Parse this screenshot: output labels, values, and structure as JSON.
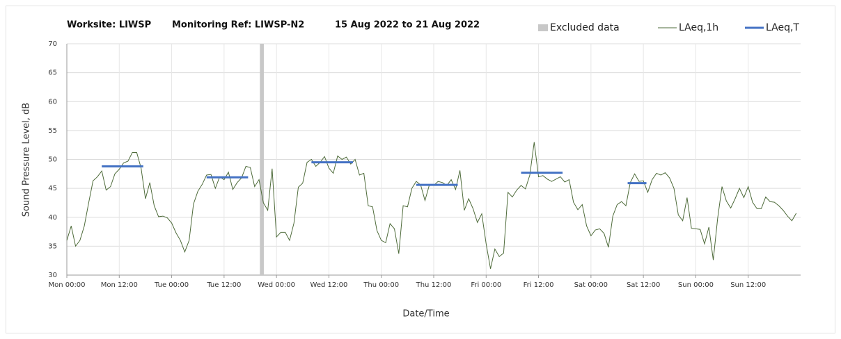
{
  "chart_data": {
    "type": "line",
    "title_parts": [
      "Worksite: LIWSP",
      "Monitoring Ref: LIWSP-N2",
      "15 Aug 2022 to 21 Aug 2022"
    ],
    "x_label": "Date/Time",
    "y_label": "Sound Pressure Level, dB",
    "xlim": [
      0,
      168
    ],
    "ylim": [
      30,
      70
    ],
    "yticks": [
      30,
      35,
      40,
      45,
      50,
      55,
      60,
      65,
      70
    ],
    "xticks": [
      {
        "value": 0,
        "label": "Mon 00:00"
      },
      {
        "value": 12,
        "label": "Mon 12:00"
      },
      {
        "value": 24,
        "label": "Tue 00:00"
      },
      {
        "value": 36,
        "label": "Tue 12:00"
      },
      {
        "value": 48,
        "label": "Wed 00:00"
      },
      {
        "value": 60,
        "label": "Wed 12:00"
      },
      {
        "value": 72,
        "label": "Thu 00:00"
      },
      {
        "value": 84,
        "label": "Thu 12:00"
      },
      {
        "value": 96,
        "label": "Fri 00:00"
      },
      {
        "value": 108,
        "label": "Fri 12:00"
      },
      {
        "value": 120,
        "label": "Sat 00:00"
      },
      {
        "value": 132,
        "label": "Sat 12:00"
      },
      {
        "value": 144,
        "label": "Sun 00:00"
      },
      {
        "value": 156,
        "label": "Sun 12:00"
      }
    ],
    "grid": true,
    "legend": "top-right",
    "excluded": {
      "name": "Excluded data",
      "color": "#c8c8c8",
      "x": [
        44.2,
        45.1
      ]
    },
    "series": [
      {
        "name": "LAeq,1h",
        "color": "#4e6b3a",
        "x": [
          0,
          1,
          2,
          3,
          4,
          5,
          6,
          7,
          8,
          9,
          10,
          11,
          12,
          13,
          14,
          15,
          16,
          17,
          18,
          19,
          20,
          21,
          22,
          23,
          24,
          25,
          26,
          27,
          28,
          29,
          30,
          31,
          32,
          33,
          34,
          35,
          36,
          37,
          38,
          39,
          40,
          41,
          42,
          43,
          44,
          45,
          46,
          47,
          48,
          49,
          50,
          51,
          52,
          53,
          54,
          55,
          56,
          57,
          58,
          59,
          60,
          61,
          62,
          63,
          64,
          65,
          66,
          67,
          68,
          69,
          70,
          71,
          72,
          73,
          74,
          75,
          76,
          77,
          78,
          79,
          80,
          81,
          82,
          83,
          84,
          85,
          86,
          87,
          88,
          89,
          90,
          91,
          92,
          93,
          94,
          95,
          96,
          97,
          98,
          99,
          100,
          101,
          102,
          103,
          104,
          105,
          106,
          107,
          108,
          109,
          110,
          111,
          112,
          113,
          114,
          115,
          116,
          117,
          118,
          119,
          120,
          121,
          122,
          123,
          124,
          125,
          126,
          127,
          128,
          129,
          130,
          131,
          132,
          133,
          134,
          135,
          136,
          137,
          138,
          139,
          140,
          141,
          142,
          143,
          144,
          145,
          146,
          147,
          148,
          149,
          150,
          151,
          152,
          153,
          154,
          155,
          156,
          157,
          158,
          159,
          160,
          161,
          162,
          163,
          164,
          165,
          166,
          167
        ],
        "values": [
          36,
          38.5,
          35,
          36,
          38.5,
          42.5,
          46.3,
          47,
          48,
          44.7,
          45.3,
          47.5,
          48.3,
          49.4,
          49.7,
          51.2,
          51.2,
          48.5,
          43.2,
          46,
          42,
          40.1,
          40.2,
          39.9,
          39,
          37.3,
          36,
          34,
          36,
          42.3,
          44.5,
          45.7,
          47.3,
          47.4,
          45,
          47,
          46.5,
          47.8,
          44.8,
          46,
          46.8,
          48.8,
          48.6,
          45.3,
          46.5,
          42.5,
          41.2,
          48.4,
          36.6,
          37.4,
          37.4,
          36,
          39,
          45.2,
          45.9,
          49.5,
          50,
          48.8,
          49.5,
          50.5,
          48.5,
          47.6,
          50.6,
          50,
          50.4,
          49.2,
          50,
          47.3,
          47.6,
          42,
          41.8,
          37.7,
          36,
          35.6,
          38.9,
          38,
          33.7,
          42,
          41.8,
          45,
          46.2,
          45.6,
          42.9,
          45.6,
          45.5,
          46.2,
          46,
          45.5,
          46.5,
          44.8,
          48.1,
          41.2,
          43.2,
          41.5,
          39.1,
          40.6,
          35.4,
          31.1,
          34.5,
          33.2,
          33.8,
          44.3,
          43.5,
          44.7,
          45.5,
          44.9,
          47.3,
          53,
          47,
          47.2,
          46.6,
          46.2,
          46.6,
          47,
          46.1,
          46.5,
          42.6,
          41.3,
          42.2,
          38.5,
          36.8,
          37.8,
          38,
          37.2,
          34.8,
          40.2,
          42.2,
          42.7,
          42,
          46,
          47.5,
          46.2,
          46.3,
          44.3,
          46.5,
          47.6,
          47.3,
          47.7,
          46.8,
          45,
          40.4,
          39.4,
          43.4,
          38.1,
          38,
          37.9,
          35.4,
          38.3,
          32.6,
          39.8,
          45.3,
          42.8,
          41.6,
          43.2,
          45,
          43.4,
          45.3,
          42.6,
          41.5,
          41.5,
          43.5,
          42.7,
          42.6,
          42,
          41.2,
          40.2,
          39.4,
          40.7
        ]
      },
      {
        "name": "LAeq,T",
        "color": "#4472c4",
        "x_start": [
          8,
          32,
          56,
          80,
          104,
          128.4
        ],
        "x_end": [
          17.5,
          41.5,
          65.5,
          89.5,
          113.5,
          132.7
        ],
        "values": [
          48.8,
          46.9,
          49.5,
          45.6,
          47.7,
          45.9
        ]
      }
    ]
  }
}
